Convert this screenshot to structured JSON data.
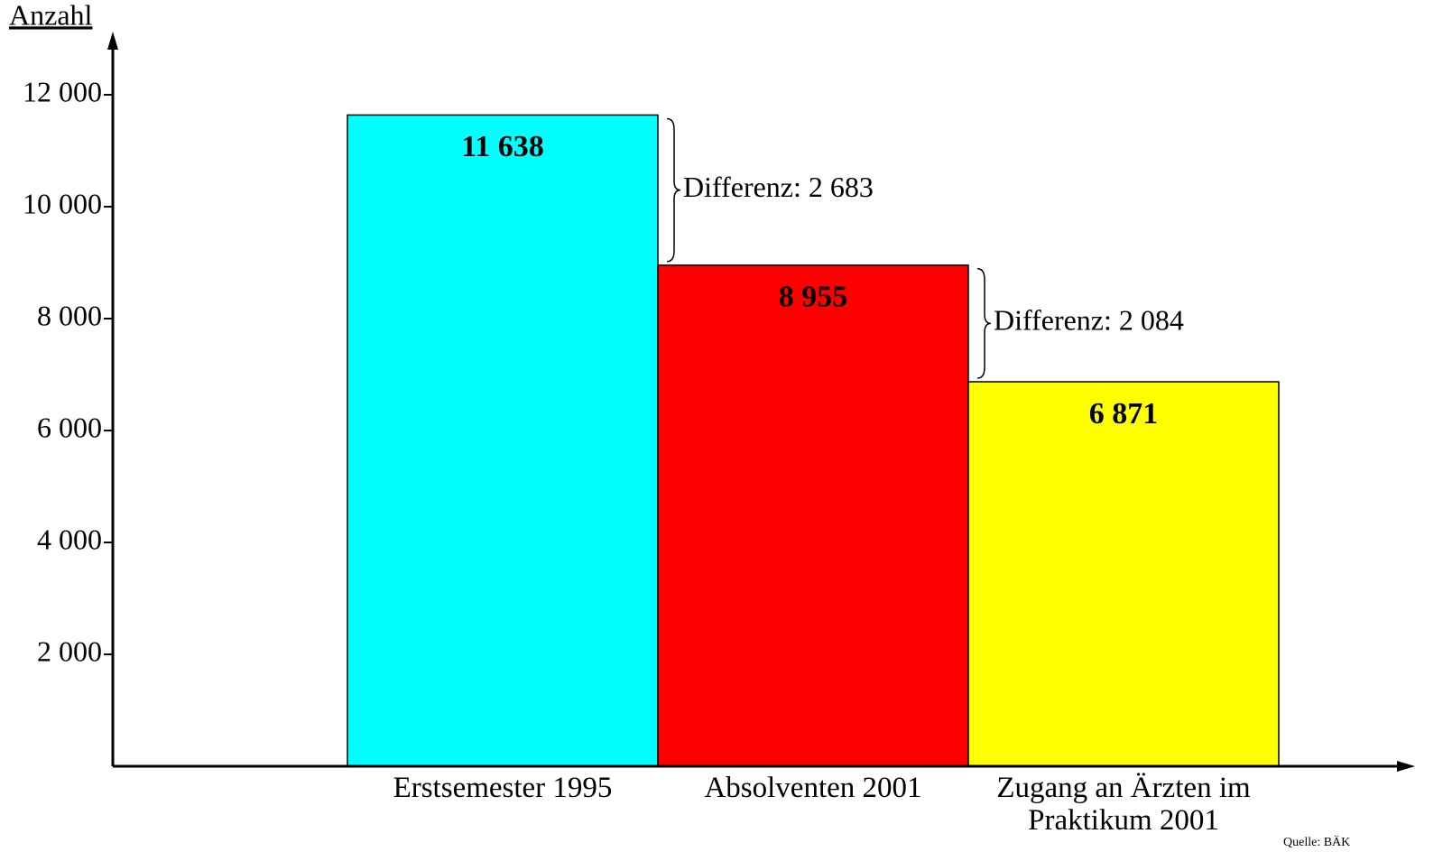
{
  "chart_data": {
    "type": "bar",
    "y_label": "Anzahl",
    "categories": [
      "Erstsemester 1995",
      "Absolventen 2001",
      "Zugang an Ärzten im Praktikum 2001"
    ],
    "values": [
      11638,
      8955,
      6871
    ],
    "value_labels": [
      "11 638",
      "8 955",
      "6 871"
    ],
    "colors": [
      "#00ffff",
      "#ff0000",
      "#ffff00"
    ],
    "value_label_colors": [
      "#ffffff",
      "#ffffff",
      "#000000"
    ],
    "annotations": [
      "Differenz: 2 683",
      "Differenz: 2 084"
    ],
    "source": "Quelle: BÄK",
    "ylim": [
      0,
      13000
    ],
    "yticks": [
      {
        "value": 2000,
        "label": "2 000"
      },
      {
        "value": 4000,
        "label": "4 000"
      },
      {
        "value": 6000,
        "label": "6 000"
      },
      {
        "value": 8000,
        "label": "8 000"
      },
      {
        "value": 10000,
        "label": "10 000"
      },
      {
        "value": 12000,
        "label": "12 000"
      }
    ]
  }
}
